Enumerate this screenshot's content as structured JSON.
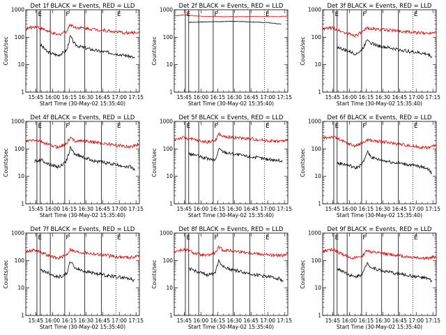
{
  "chart_data": {
    "type": "line",
    "xlabel": "Start Time (30-May-02 15:35:40)",
    "ylabel": "Counts/sec",
    "y_scale": "log",
    "ylim": [
      1,
      1000
    ],
    "y_tick_labels": [
      "1",
      "10",
      "100",
      "1000"
    ],
    "xlim": [
      "15:36",
      "17:18"
    ],
    "x_tick_labels": [
      "15:45",
      "16:00",
      "16:15",
      "16:30",
      "16:45",
      "17:00",
      "17:15"
    ],
    "colors": {
      "events": "#000000",
      "lld": "#e00000"
    },
    "markers": [
      {
        "label": "E",
        "time": "15:46",
        "style": "solid"
      },
      {
        "label": "",
        "time": "15:49",
        "style": "solid"
      },
      {
        "label": "",
        "time": "15:58",
        "style": "solid"
      },
      {
        "label": "F",
        "time": "16:11",
        "style": "solid"
      },
      {
        "label": "",
        "time": "16:29",
        "style": "solid"
      },
      {
        "label": "",
        "time": "16:44",
        "style": "solid"
      },
      {
        "label": "E",
        "time": "16:57",
        "style": "dotted"
      }
    ],
    "panels": [
      {
        "title": "Det 1f BLACK = Events, RED = LLD",
        "series": [
          {
            "name": "Events",
            "color": "#000000",
            "x": [
              "15:49",
              "15:55",
              "16:00",
              "16:05",
              "16:10",
              "16:13",
              "16:16",
              "16:20",
              "16:25",
              "16:30",
              "16:40",
              "16:50",
              "17:00",
              "17:10",
              "17:14"
            ],
            "y": [
              55,
              30,
              25,
              22,
              28,
              35,
              110,
              55,
              45,
              40,
              32,
              28,
              24,
              20,
              17
            ]
          },
          {
            "name": "LLD",
            "color": "#e00000",
            "x": [
              "15:36",
              "15:40",
              "15:45",
              "15:50",
              "15:55",
              "16:00",
              "16:05",
              "16:10",
              "16:13",
              "16:16",
              "16:20",
              "16:30",
              "16:40",
              "16:50",
              "17:00",
              "17:10",
              "17:18"
            ],
            "y": [
              200,
              220,
              250,
              210,
              170,
              140,
              120,
              150,
              170,
              300,
              230,
              210,
              190,
              170,
              150,
              140,
              155
            ]
          }
        ]
      },
      {
        "title": "Det 2f BLACK = Events, RED = LLD",
        "series": [
          {
            "name": "Events",
            "color": "#000000",
            "x": [
              "15:49",
              "16:00",
              "16:15",
              "16:30",
              "16:45",
              "17:00",
              "17:12"
            ],
            "y": [
              350,
              360,
              370,
              380,
              360,
              340,
              300
            ]
          },
          {
            "name": "LLD",
            "color": "#e00000",
            "x": [
              "15:36",
              "15:45",
              "16:00",
              "16:15",
              "16:30",
              "16:45",
              "17:00",
              "17:18"
            ],
            "y": [
              600,
              650,
              580,
              560,
              560,
              570,
              560,
              580
            ]
          }
        ]
      },
      {
        "title": "Det 3f BLACK = Events, RED = LLD",
        "series": [
          {
            "name": "Events",
            "color": "#000000",
            "x": [
              "15:49",
              "15:55",
              "16:00",
              "16:05",
              "16:10",
              "16:13",
              "16:16",
              "16:20",
              "16:25",
              "16:30",
              "16:40",
              "16:50",
              "17:00",
              "17:10",
              "17:14"
            ],
            "y": [
              45,
              35,
              30,
              25,
              30,
              45,
              90,
              60,
              50,
              45,
              38,
              32,
              28,
              24,
              20
            ]
          },
          {
            "name": "LLD",
            "color": "#e00000",
            "x": [
              "15:36",
              "15:40",
              "15:45",
              "15:50",
              "15:55",
              "16:00",
              "16:05",
              "16:10",
              "16:13",
              "16:16",
              "16:20",
              "16:30",
              "16:40",
              "16:50",
              "17:00",
              "17:10",
              "17:18"
            ],
            "y": [
              190,
              210,
              220,
              180,
              150,
              130,
              115,
              140,
              160,
              220,
              200,
              190,
              175,
              160,
              145,
              140,
              160
            ]
          }
        ]
      },
      {
        "title": "Det 4f BLACK = Events, RED = LLD",
        "series": [
          {
            "name": "Events",
            "color": "#000000",
            "x": [
              "15:44",
              "15:50",
              "15:55",
              "16:00",
              "16:05",
              "16:10",
              "16:13",
              "16:16",
              "16:20",
              "16:25",
              "16:30",
              "16:40",
              "16:50",
              "17:00",
              "17:10",
              "17:14"
            ],
            "y": [
              35,
              40,
              30,
              25,
              22,
              28,
              40,
              110,
              65,
              55,
              45,
              35,
              30,
              25,
              22,
              18
            ]
          },
          {
            "name": "LLD",
            "color": "#e00000",
            "x": [
              "15:36",
              "15:40",
              "15:45",
              "15:50",
              "15:55",
              "16:00",
              "16:05",
              "16:10",
              "16:13",
              "16:16",
              "16:20",
              "16:30",
              "16:40",
              "16:50",
              "17:00",
              "17:10",
              "17:18"
            ],
            "y": [
              180,
              200,
              210,
              180,
              150,
              130,
              115,
              140,
              170,
              250,
              200,
              190,
              170,
              150,
              130,
              120,
              150
            ]
          }
        ]
      },
      {
        "title": "Det 5f BLACK = Events, RED = LLD",
        "series": [
          {
            "name": "Events",
            "color": "#000000",
            "x": [
              "15:49",
              "15:55",
              "16:00",
              "16:05",
              "16:10",
              "16:13",
              "16:16",
              "16:20",
              "16:25",
              "16:30",
              "16:40",
              "16:50",
              "17:00",
              "17:10",
              "17:13"
            ],
            "y": [
              65,
              60,
              50,
              45,
              40,
              38,
              100,
              80,
              70,
              65,
              55,
              48,
              42,
              38,
              35
            ]
          },
          {
            "name": "LLD",
            "color": "#e00000",
            "x": [
              "15:36",
              "15:40",
              "15:45",
              "15:50",
              "15:55",
              "16:00",
              "16:05",
              "16:10",
              "16:13",
              "16:16",
              "16:20",
              "16:30",
              "16:40",
              "16:50",
              "17:00",
              "17:10",
              "17:18"
            ],
            "y": [
              220,
              240,
              260,
              230,
              210,
              190,
              180,
              190,
              200,
              350,
              280,
              260,
              240,
              220,
              200,
              190,
              200
            ]
          }
        ]
      },
      {
        "title": "Det 6f BLACK = Events, RED = LLD",
        "series": [
          {
            "name": "Events",
            "color": "#000000",
            "x": [
              "15:49",
              "15:55",
              "16:00",
              "16:05",
              "16:10",
              "16:13",
              "16:16",
              "16:20",
              "16:25",
              "16:30",
              "16:40",
              "16:50",
              "17:00",
              "17:10",
              "17:14"
            ],
            "y": [
              30,
              28,
              25,
              20,
              25,
              35,
              80,
              50,
              42,
              38,
              32,
              28,
              24,
              20,
              13
            ]
          },
          {
            "name": "LLD",
            "color": "#e00000",
            "x": [
              "15:36",
              "15:40",
              "15:45",
              "15:50",
              "15:55",
              "16:00",
              "16:05",
              "16:10",
              "16:13",
              "16:16",
              "16:20",
              "16:30",
              "16:40",
              "16:50",
              "17:00",
              "17:10",
              "17:18"
            ],
            "y": [
              240,
              260,
              280,
              230,
              180,
              150,
              130,
              150,
              170,
              220,
              200,
              180,
              160,
              140,
              120,
              110,
              140
            ]
          }
        ]
      },
      {
        "title": "Det 7f BLACK = Events, RED = LLD",
        "series": [
          {
            "name": "Events",
            "color": "#000000",
            "x": [
              "15:49",
              "15:55",
              "16:00",
              "16:05",
              "16:10",
              "16:13",
              "16:16",
              "16:20",
              "16:25",
              "16:30",
              "16:40",
              "16:50",
              "17:00",
              "17:10",
              "17:14"
            ],
            "y": [
              45,
              38,
              30,
              25,
              28,
              35,
              95,
              55,
              45,
              40,
              33,
              28,
              25,
              22,
              18
            ]
          },
          {
            "name": "LLD",
            "color": "#e00000",
            "x": [
              "15:36",
              "15:40",
              "15:45",
              "15:50",
              "15:55",
              "16:00",
              "16:05",
              "16:10",
              "16:13",
              "16:16",
              "16:20",
              "16:30",
              "16:40",
              "16:50",
              "17:00",
              "17:10",
              "17:18"
            ],
            "y": [
              210,
              230,
              240,
              200,
              160,
              135,
              120,
              145,
              170,
              260,
              210,
              190,
              170,
              150,
              135,
              130,
              150
            ]
          }
        ]
      },
      {
        "title": "Det 8f BLACK = Events, RED = LLD",
        "series": [
          {
            "name": "Events",
            "color": "#000000",
            "x": [
              "15:49",
              "15:55",
              "16:00",
              "16:05",
              "16:10",
              "16:13",
              "16:16",
              "16:20",
              "16:25",
              "16:30",
              "16:40",
              "16:50",
              "17:00",
              "17:10",
              "17:14"
            ],
            "y": [
              50,
              42,
              35,
              30,
              32,
              40,
              100,
              60,
              50,
              45,
              36,
              30,
              26,
              22,
              18
            ]
          },
          {
            "name": "LLD",
            "color": "#e00000",
            "x": [
              "15:36",
              "15:40",
              "15:45",
              "15:50",
              "15:55",
              "16:00",
              "16:05",
              "16:10",
              "16:13",
              "16:16",
              "16:20",
              "16:30",
              "16:40",
              "16:50",
              "17:00",
              "17:10",
              "17:18"
            ],
            "y": [
              210,
              230,
              250,
              220,
              180,
              160,
              150,
              170,
              190,
              300,
              240,
              220,
              200,
              180,
              160,
              150,
              160
            ]
          }
        ]
      },
      {
        "title": "Det 9f BLACK = Events, RED = LLD",
        "series": [
          {
            "name": "Events",
            "color": "#000000",
            "x": [
              "15:49",
              "15:55",
              "16:00",
              "16:05",
              "16:10",
              "16:13",
              "16:16",
              "16:20",
              "16:25",
              "16:30",
              "16:40",
              "16:50",
              "17:00",
              "17:10",
              "17:14"
            ],
            "y": [
              50,
              40,
              30,
              25,
              30,
              40,
              85,
              55,
              48,
              42,
              35,
              30,
              26,
              22,
              18
            ]
          },
          {
            "name": "LLD",
            "color": "#e00000",
            "x": [
              "15:36",
              "15:40",
              "15:45",
              "15:50",
              "15:55",
              "16:00",
              "16:05",
              "16:10",
              "16:13",
              "16:16",
              "16:20",
              "16:30",
              "16:40",
              "16:50",
              "17:00",
              "17:10",
              "17:18"
            ],
            "y": [
              210,
              230,
              250,
              200,
              160,
              135,
              120,
              140,
              170,
              240,
              200,
              180,
              160,
              140,
              130,
              120,
              140
            ]
          }
        ]
      }
    ]
  }
}
